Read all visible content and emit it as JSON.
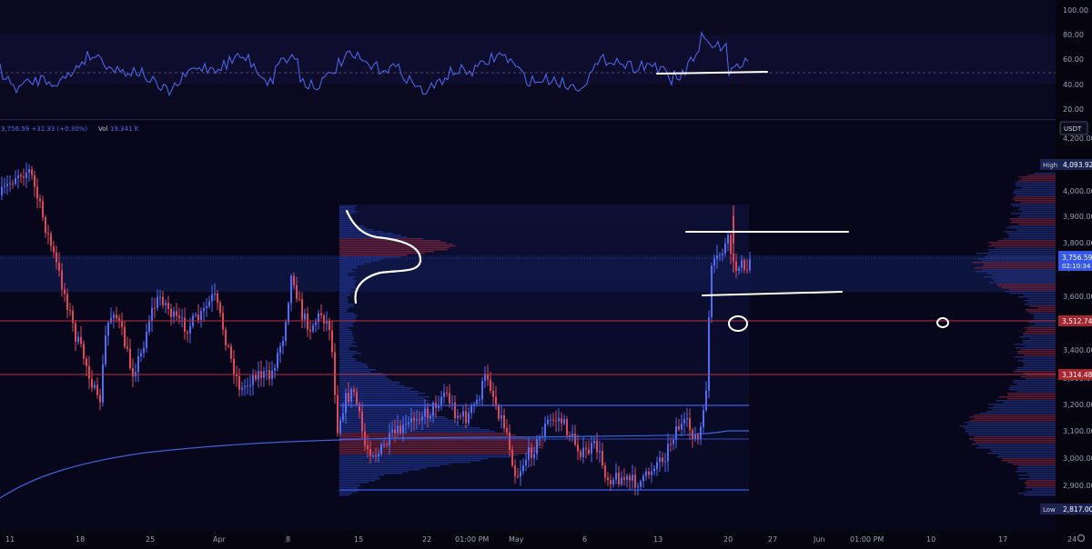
{
  "header": {
    "price_change": "3,756.59 +31.33 (+0.30%)",
    "volume_label": "Vol",
    "volume_value": "19.341 K",
    "currency": "USDT"
  },
  "oscillator": {
    "ticks": [
      "100.00",
      "80.00",
      "60.00",
      "40.00",
      "20.00"
    ]
  },
  "price_axis": {
    "ticks": [
      "4,200.00",
      "4,000.00",
      "3,900.00",
      "3,800.00",
      "3,700.00",
      "3,600.00",
      "3,400.00",
      "3,300.00",
      "3,200.00",
      "3,100.00",
      "3,000.00",
      "2,900.00"
    ],
    "high_label": "High",
    "high_value": "4,093.92",
    "last_price": "3,756.59",
    "countdown": "02:10:34",
    "level_1": "3,512.74",
    "level_2": "3,314.48",
    "low_label": "Low",
    "low_value": "2,817.00"
  },
  "time_axis": {
    "labels": [
      "11",
      "18",
      "25",
      "Apr",
      "8",
      "15",
      "22",
      "01:00 PM",
      "May",
      "6",
      "13",
      "20",
      "27",
      "Jun",
      "01:00 PM",
      "10",
      "17",
      "24"
    ]
  },
  "colors": {
    "up": "#4f6df5",
    "down": "#e0475a",
    "ma": "#3d63d9",
    "annotation": "#ffffff",
    "level": "#b8323f",
    "box": "#2f4fd6"
  },
  "chart_data": {
    "type": "candlestick",
    "title": "",
    "xlabel": "",
    "ylabel": "",
    "x_range": [
      "Mar 11",
      "Jun 24"
    ],
    "ylim": [
      2817,
      4200
    ],
    "last_price": 3756.59,
    "change": 31.33,
    "change_percent": 0.3,
    "volume": "19.341 K",
    "period_high": 4093.92,
    "period_low": 2817.0,
    "horizontal_levels": [
      3512.74,
      3314.48
    ],
    "range_box": {
      "top": 3200,
      "bottom": 2885
    },
    "volume_profile": true,
    "oscillator": {
      "range": [
        20,
        100
      ],
      "midline": 50
    },
    "grid": false,
    "legend": "none"
  }
}
